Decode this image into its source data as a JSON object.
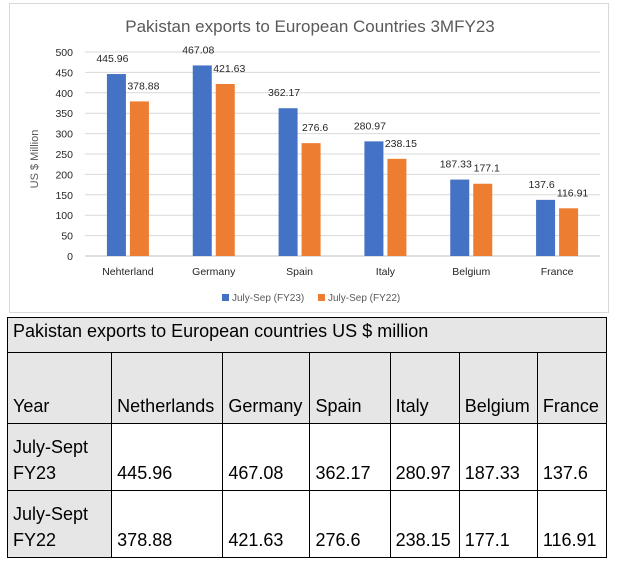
{
  "chart_data": {
    "type": "bar",
    "title": "Pakistan exports to European Countries 3MFY23",
    "xlabel": "",
    "ylabel": "US $ Million",
    "ylim": [
      0,
      500
    ],
    "yticks": [
      0,
      50,
      100,
      150,
      200,
      250,
      300,
      350,
      400,
      450,
      500
    ],
    "grid": true,
    "legend": "bottom",
    "categories": [
      "Nehterland",
      "Germany",
      "Spain",
      "Italy",
      "Belgium",
      "France"
    ],
    "series": [
      {
        "name": "July-Sep (FY23)",
        "color": "#4472c4",
        "values": [
          445.96,
          467.08,
          362.17,
          280.97,
          187.33,
          137.6
        ],
        "labels": [
          "445.96",
          "467.08",
          "362.17",
          "280.97",
          "187.33",
          "137.6"
        ]
      },
      {
        "name": "July-Sep (FY22)",
        "color": "#ed7d31",
        "values": [
          378.88,
          421.63,
          276.6,
          238.15,
          177.1,
          116.91
        ],
        "labels": [
          "378.88",
          "421.63",
          "276.6",
          "238.15",
          "177.1",
          "116.91"
        ]
      }
    ]
  },
  "table": {
    "title": "Pakistan exports to European countries US $ million",
    "headers": [
      "Year",
      "Netherlands",
      "Germany",
      "Spain",
      "Italy",
      "Belgium",
      "France"
    ],
    "rows": [
      {
        "year": "July-Sept FY23",
        "values": [
          "445.96",
          "467.08",
          "362.17",
          "280.97",
          "187.33",
          "137.6"
        ]
      },
      {
        "year": "July-Sept FY22",
        "values": [
          "378.88",
          "421.63",
          "276.6",
          "238.15",
          "177.1",
          "116.91"
        ]
      }
    ]
  }
}
